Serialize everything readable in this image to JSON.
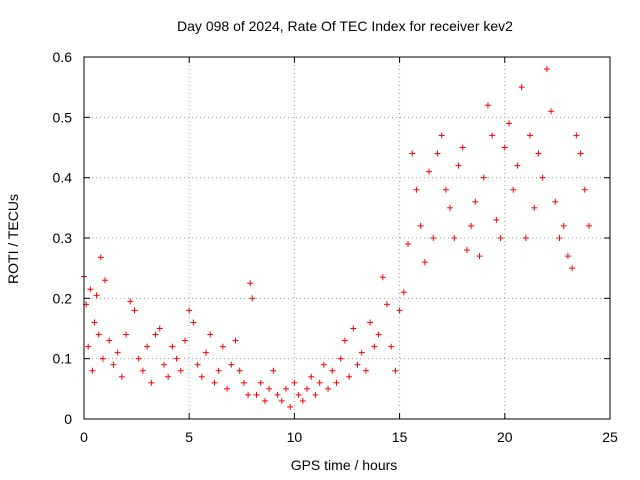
{
  "chart_data": {
    "type": "scatter",
    "title": "Day 098 of 2024, Rate Of TEC Index for receiver kev2",
    "xlabel": "GPS time / hours",
    "ylabel": "ROTI / TECUs",
    "xlim": [
      0,
      25
    ],
    "ylim": [
      0,
      0.6
    ],
    "xticks": [
      "0",
      "5",
      "10",
      "15",
      "20",
      "25"
    ],
    "yticks": [
      "0",
      "0.1",
      "0.2",
      "0.3",
      "0.4",
      "0.5",
      "0.6"
    ],
    "grid": true,
    "marker": "plus",
    "color": "#ff0000",
    "series": [
      {
        "x": [
          0.0,
          0.1,
          0.2,
          0.3,
          0.4,
          0.5,
          0.6,
          0.7,
          0.8,
          0.9,
          1.0,
          1.2,
          1.4,
          1.6,
          1.8,
          2.0,
          2.2,
          2.4,
          2.6,
          2.8,
          3.0,
          3.2,
          3.4,
          3.6,
          3.8,
          4.0,
          4.2,
          4.4,
          4.6,
          4.8,
          5.0,
          5.2,
          5.4,
          5.6,
          5.8,
          6.0,
          6.2,
          6.4,
          6.6,
          6.8,
          7.0,
          7.2,
          7.4,
          7.6,
          7.8,
          7.9,
          8.0,
          8.2,
          8.4,
          8.6,
          8.8,
          9.0,
          9.2,
          9.4,
          9.6,
          9.8,
          10.0,
          10.2,
          10.4,
          10.6,
          10.8,
          11.0,
          11.2,
          11.4,
          11.6,
          11.8,
          12.0,
          12.2,
          12.4,
          12.6,
          12.8,
          13.0,
          13.2,
          13.4,
          13.6,
          13.8,
          14.0,
          14.2,
          14.4,
          14.6,
          14.8,
          15.0,
          15.2,
          15.4,
          15.6,
          15.8,
          16.0,
          16.2,
          16.4,
          16.6,
          16.8,
          17.0,
          17.2,
          17.4,
          17.6,
          17.8,
          18.0,
          18.2,
          18.4,
          18.6,
          18.8,
          19.0,
          19.2,
          19.4,
          19.6,
          19.8,
          20.0,
          20.2,
          20.4,
          20.6,
          20.8,
          21.0,
          21.2,
          21.4,
          21.6,
          21.8,
          22.0,
          22.2,
          22.4,
          22.6,
          22.8,
          23.0,
          23.2,
          23.4,
          23.6,
          23.8,
          24.0
        ],
        "y": [
          0.236,
          0.19,
          0.12,
          0.215,
          0.08,
          0.16,
          0.205,
          0.14,
          0.268,
          0.1,
          0.23,
          0.13,
          0.09,
          0.11,
          0.07,
          0.14,
          0.195,
          0.18,
          0.1,
          0.08,
          0.12,
          0.06,
          0.14,
          0.15,
          0.09,
          0.07,
          0.12,
          0.1,
          0.08,
          0.13,
          0.18,
          0.16,
          0.09,
          0.07,
          0.11,
          0.14,
          0.06,
          0.08,
          0.12,
          0.05,
          0.09,
          0.13,
          0.08,
          0.06,
          0.04,
          0.225,
          0.2,
          0.04,
          0.06,
          0.03,
          0.05,
          0.08,
          0.04,
          0.03,
          0.05,
          0.02,
          0.06,
          0.04,
          0.03,
          0.05,
          0.07,
          0.04,
          0.06,
          0.09,
          0.05,
          0.08,
          0.06,
          0.1,
          0.13,
          0.07,
          0.15,
          0.09,
          0.11,
          0.08,
          0.16,
          0.12,
          0.14,
          0.235,
          0.19,
          0.12,
          0.08,
          0.18,
          0.21,
          0.29,
          0.44,
          0.38,
          0.32,
          0.26,
          0.41,
          0.3,
          0.44,
          0.47,
          0.38,
          0.35,
          0.3,
          0.42,
          0.45,
          0.28,
          0.32,
          0.36,
          0.27,
          0.4,
          0.52,
          0.47,
          0.33,
          0.3,
          0.45,
          0.49,
          0.38,
          0.42,
          0.55,
          0.3,
          0.47,
          0.35,
          0.44,
          0.4,
          0.58,
          0.51,
          0.36,
          0.3,
          0.32,
          0.27,
          0.25,
          0.47,
          0.44,
          0.38,
          0.32
        ]
      }
    ]
  }
}
